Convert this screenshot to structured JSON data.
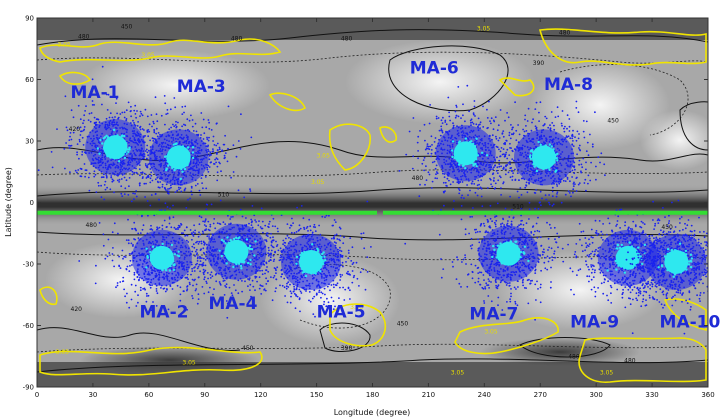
{
  "chart_data": {
    "type": "scatter",
    "xlabel": "Longitude (degree)",
    "ylabel": "Latitude (degree)",
    "xlim": [
      0,
      360
    ],
    "ylim": [
      -90,
      90
    ],
    "x_ticks": [
      0,
      30,
      60,
      90,
      120,
      150,
      180,
      210,
      240,
      270,
      300,
      330,
      360
    ],
    "y_ticks": [
      -90,
      -60,
      -30,
      0,
      30,
      60,
      90
    ],
    "equator_line": {
      "latitude": -5,
      "color": "#33dd33"
    },
    "regions": [
      {
        "name": "MA-1",
        "lon": 42,
        "lat": 27,
        "label_lon": 18,
        "label_lat": 51
      },
      {
        "name": "MA-2",
        "lon": 67,
        "lat": -27,
        "label_lon": 55,
        "label_lat": -56
      },
      {
        "name": "MA-3",
        "lon": 76,
        "lat": 22,
        "label_lon": 75,
        "label_lat": 54
      },
      {
        "name": "MA-4",
        "lon": 107,
        "lat": -24,
        "label_lon": 92,
        "label_lat": -52
      },
      {
        "name": "MA-5",
        "lon": 147,
        "lat": -29,
        "label_lon": 150,
        "label_lat": -56
      },
      {
        "name": "MA-6",
        "lon": 230,
        "lat": 24,
        "label_lon": 200,
        "label_lat": 63
      },
      {
        "name": "MA-7",
        "lon": 253,
        "lat": -25,
        "label_lon": 232,
        "label_lat": -57
      },
      {
        "name": "MA-8",
        "lon": 272,
        "lat": 22,
        "label_lon": 272,
        "label_lat": 55
      },
      {
        "name": "MA-9",
        "lon": 317,
        "lat": -27,
        "label_lon": 286,
        "label_lat": -61
      },
      {
        "name": "MA-10",
        "lon": 343,
        "lat": -29,
        "label_lon": 334,
        "label_lat": -61
      }
    ],
    "contour_labels": [
      {
        "text": "480",
        "lon": 22,
        "lat": 80
      },
      {
        "text": "450",
        "lon": 45,
        "lat": 85
      },
      {
        "text": "480",
        "lon": 104,
        "lat": 79
      },
      {
        "text": "480",
        "lon": 163,
        "lat": 79
      },
      {
        "text": "480",
        "lon": 280,
        "lat": 82
      },
      {
        "text": "390",
        "lon": 266,
        "lat": 67
      },
      {
        "text": "420",
        "lon": 17,
        "lat": 35
      },
      {
        "text": "450",
        "lon": 306,
        "lat": 39
      },
      {
        "text": "480",
        "lon": 201,
        "lat": 11
      },
      {
        "text": "510",
        "lon": 97,
        "lat": 3
      },
      {
        "text": "510",
        "lon": 255,
        "lat": -3
      },
      {
        "text": "480",
        "lon": 26,
        "lat": -12
      },
      {
        "text": "450",
        "lon": 335,
        "lat": -13
      },
      {
        "text": "420",
        "lon": 18,
        "lat": -53
      },
      {
        "text": "450",
        "lon": 193,
        "lat": -60
      },
      {
        "text": "450",
        "lon": 110,
        "lat": -72
      },
      {
        "text": "390",
        "lon": 163,
        "lat": -72
      },
      {
        "text": "480",
        "lon": 315,
        "lat": -78
      },
      {
        "text": "480",
        "lon": 285,
        "lat": -76
      }
    ],
    "yellow_labels": [
      {
        "text": "3.05",
        "lon": 11,
        "lat": 76
      },
      {
        "text": "3.05",
        "lon": 56,
        "lat": 71
      },
      {
        "text": "3.05",
        "lon": 150,
        "lat": 22
      },
      {
        "text": "3.05",
        "lon": 147,
        "lat": 9
      },
      {
        "text": "3.05",
        "lon": 236,
        "lat": 84
      },
      {
        "text": "3.05",
        "lon": 168,
        "lat": -52
      },
      {
        "text": "3.05",
        "lon": 240,
        "lat": -64
      },
      {
        "text": "3.05",
        "lon": 10,
        "lat": -74
      },
      {
        "text": "3.05",
        "lon": 78,
        "lat": -79
      },
      {
        "text": "3.05",
        "lon": 222,
        "lat": -84
      },
      {
        "text": "3.05",
        "lon": 302,
        "lat": -84
      }
    ]
  },
  "colors": {
    "dots": "#1a22ee",
    "core": "#2ee8ef",
    "coast": "#f0e400",
    "equator": "#33dd33",
    "label": "#1f2bd6"
  }
}
